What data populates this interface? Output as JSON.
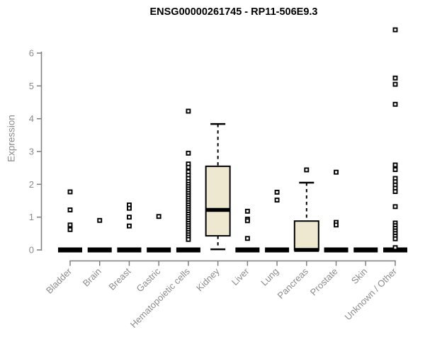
{
  "title": "ENSG00000261745 - RP11-506E9.3",
  "chart_data": {
    "type": "boxplot",
    "title": "ENSG00000261745 - RP11-506E9.3",
    "ylabel": "Expression",
    "xlabel": "",
    "yticks": [
      0,
      1,
      2,
      3,
      4,
      5,
      6
    ],
    "ylim": [
      0,
      6.9
    ],
    "grid": false,
    "legend": "none",
    "colors": {
      "box_fill": "#ede8cf",
      "box_line": "#000000",
      "axis": "#7f7f7f",
      "tick_label": "#8c8c8c",
      "title": "#000000",
      "background": "#ffffff"
    },
    "categories": [
      "Bladder",
      "Brain",
      "Breast",
      "Gastric",
      "Hematopoietic cells",
      "Kidney",
      "Liver",
      "Lung",
      "Pancreas",
      "Prostate",
      "Skin",
      "Unknown / Other"
    ],
    "series": [
      {
        "category": "Bladder",
        "q1": 0,
        "median": 0,
        "q3": 0,
        "whisker_low": 0,
        "whisker_high": 0,
        "outliers": [
          1.77,
          1.22,
          0.76,
          0.62
        ]
      },
      {
        "category": "Brain",
        "q1": 0,
        "median": 0,
        "q3": 0,
        "whisker_low": 0,
        "whisker_high": 0,
        "outliers": [
          0.9
        ]
      },
      {
        "category": "Breast",
        "q1": 0,
        "median": 0,
        "q3": 0,
        "whisker_low": 0,
        "whisker_high": 0,
        "outliers": [
          1.37,
          1.27,
          1.0,
          0.73
        ]
      },
      {
        "category": "Gastric",
        "q1": 0,
        "median": 0,
        "q3": 0,
        "whisker_low": 0,
        "whisker_high": 0,
        "outliers": [
          1.02
        ]
      },
      {
        "category": "Hematopoietic cells",
        "q1": 0,
        "median": 0,
        "q3": 0,
        "whisker_low": 0,
        "whisker_high": 0,
        "outliers": [
          4.23,
          2.95,
          2.62,
          2.52,
          2.38,
          2.28,
          2.18,
          2.08,
          2.0,
          1.93,
          1.86,
          1.79,
          1.72,
          1.65,
          1.58,
          1.51,
          1.44,
          1.37,
          1.3,
          1.23,
          1.16,
          1.09,
          1.02,
          0.95,
          0.88,
          0.81,
          0.74,
          0.67,
          0.6,
          0.53,
          0.46,
          0.39,
          0.32
        ]
      },
      {
        "category": "Kidney",
        "q1": 0.43,
        "median": 1.22,
        "q3": 2.55,
        "whisker_low": 0.02,
        "whisker_high": 3.84,
        "outliers": []
      },
      {
        "category": "Liver",
        "q1": 0,
        "median": 0,
        "q3": 0,
        "whisker_low": 0,
        "whisker_high": 0,
        "outliers": [
          1.18,
          0.94,
          0.89,
          0.35
        ]
      },
      {
        "category": "Lung",
        "q1": 0,
        "median": 0,
        "q3": 0,
        "whisker_low": 0,
        "whisker_high": 0,
        "outliers": [
          1.76,
          1.52
        ]
      },
      {
        "category": "Pancreas",
        "q1": 0,
        "median": 0,
        "q3": 0.88,
        "whisker_low": 0,
        "whisker_high": 2.05,
        "outliers": [
          2.44
        ]
      },
      {
        "category": "Prostate",
        "q1": 0,
        "median": 0,
        "q3": 0,
        "whisker_low": 0,
        "whisker_high": 0,
        "outliers": [
          2.37,
          0.84,
          0.76
        ]
      },
      {
        "category": "Skin",
        "q1": 0,
        "median": 0,
        "q3": 0,
        "whisker_low": 0,
        "whisker_high": 0,
        "outliers": []
      },
      {
        "category": "Unknown / Other",
        "q1": 0,
        "median": 0,
        "q3": 0,
        "whisker_low": 0,
        "whisker_high": 0,
        "outliers": [
          6.71,
          5.24,
          5.05,
          4.44,
          2.59,
          2.45,
          2.18,
          2.08,
          1.98,
          1.88,
          1.78,
          1.32,
          0.82,
          0.74,
          0.66,
          0.58,
          0.5,
          0.42,
          0.34,
          0.07
        ]
      }
    ]
  }
}
